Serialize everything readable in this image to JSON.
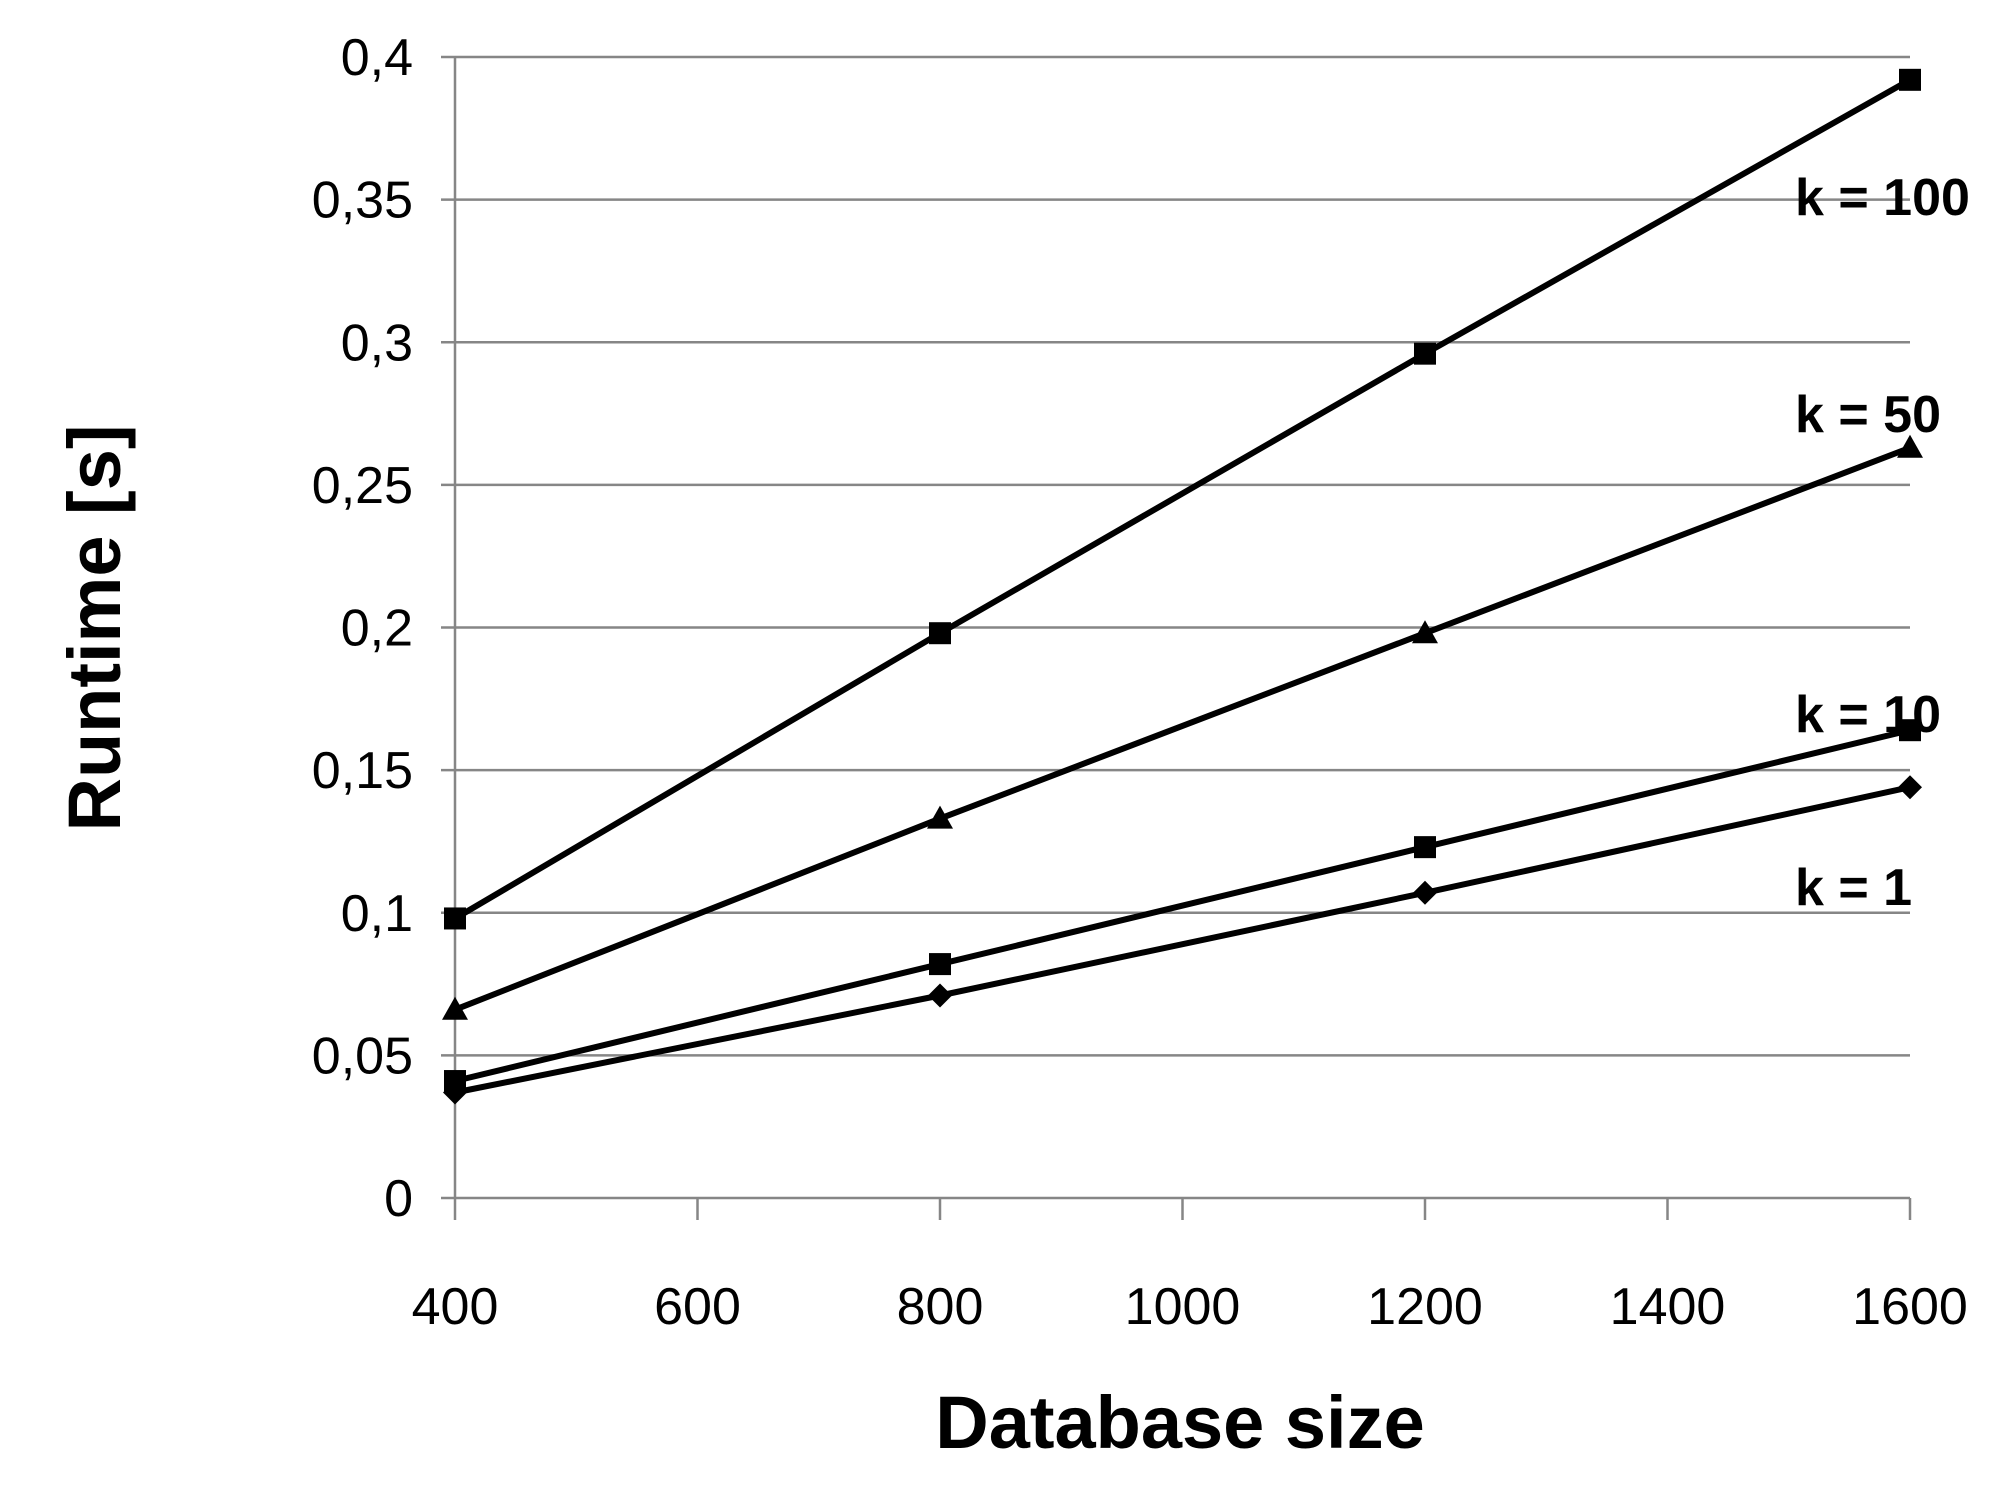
{
  "chart_data": {
    "type": "line",
    "title": "",
    "xlabel": "Database size",
    "ylabel": "Runtime [s]",
    "xlim": [
      400,
      1600
    ],
    "ylim": [
      0,
      0.4
    ],
    "x_ticks": [
      400,
      600,
      800,
      1000,
      1200,
      1400,
      1600
    ],
    "x_tick_labels": [
      "400",
      "600",
      "800",
      "1000",
      "1200",
      "1400",
      "1600"
    ],
    "y_ticks": [
      0,
      0.05,
      0.1,
      0.15,
      0.2,
      0.25,
      0.3,
      0.35,
      0.4
    ],
    "y_tick_labels": [
      "0",
      "0,05",
      "0,1",
      "0,15",
      "0,2",
      "0,25",
      "0,3",
      "0,35",
      "0,4"
    ],
    "grid": "horizontal",
    "legend": "none",
    "x": [
      400,
      800,
      1200,
      1600
    ],
    "series": [
      {
        "name": "k = 100",
        "marker": "square",
        "values": [
          0.098,
          0.198,
          0.296,
          0.392
        ]
      },
      {
        "name": "k = 50",
        "marker": "triangle",
        "values": [
          0.066,
          0.133,
          0.198,
          0.263
        ]
      },
      {
        "name": "k = 10",
        "marker": "square",
        "values": [
          0.041,
          0.082,
          0.123,
          0.164
        ]
      },
      {
        "name": "k = 1",
        "marker": "diamond",
        "values": [
          0.037,
          0.071,
          0.107,
          0.144
        ]
      }
    ],
    "colors": {
      "line": "#000000",
      "grid": "#868686",
      "axis": "#868686"
    }
  }
}
